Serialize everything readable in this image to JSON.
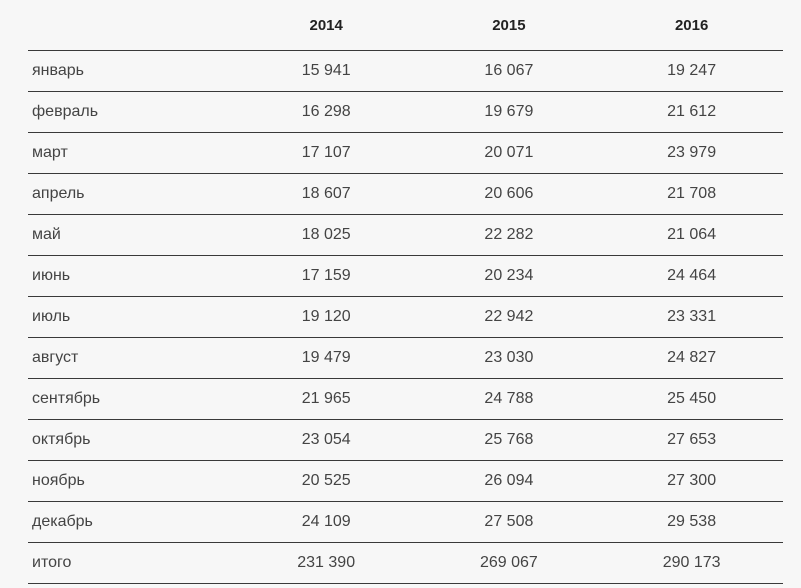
{
  "table": {
    "headers": [
      "",
      "2014",
      "2015",
      "2016"
    ],
    "rows": [
      {
        "month": "январь",
        "values": [
          "15 941",
          "16 067",
          "19 247"
        ]
      },
      {
        "month": "февраль",
        "values": [
          "16 298",
          "19 679",
          "21 612"
        ]
      },
      {
        "month": "март",
        "values": [
          "17 107",
          "20 071",
          "23 979"
        ]
      },
      {
        "month": "апрель",
        "values": [
          "18 607",
          "20 606",
          "21 708"
        ]
      },
      {
        "month": "май",
        "values": [
          "18 025",
          "22 282",
          "21 064"
        ]
      },
      {
        "month": "июнь",
        "values": [
          "17 159",
          "20 234",
          "24 464"
        ]
      },
      {
        "month": "июль",
        "values": [
          "19 120",
          "22 942",
          "23 331"
        ]
      },
      {
        "month": "август",
        "values": [
          "19 479",
          "23 030",
          "24 827"
        ]
      },
      {
        "month": "сентябрь",
        "values": [
          "21 965",
          "24 788",
          "25 450"
        ]
      },
      {
        "month": "октябрь",
        "values": [
          "23 054",
          "25 768",
          "27 653"
        ]
      },
      {
        "month": "ноябрь",
        "values": [
          "20 525",
          "26 094",
          "27 300"
        ]
      },
      {
        "month": "декабрь",
        "values": [
          "24 109",
          "27 508",
          "29 538"
        ]
      },
      {
        "month": "итого",
        "values": [
          "231 390",
          "269 067",
          "290 173"
        ]
      }
    ]
  }
}
